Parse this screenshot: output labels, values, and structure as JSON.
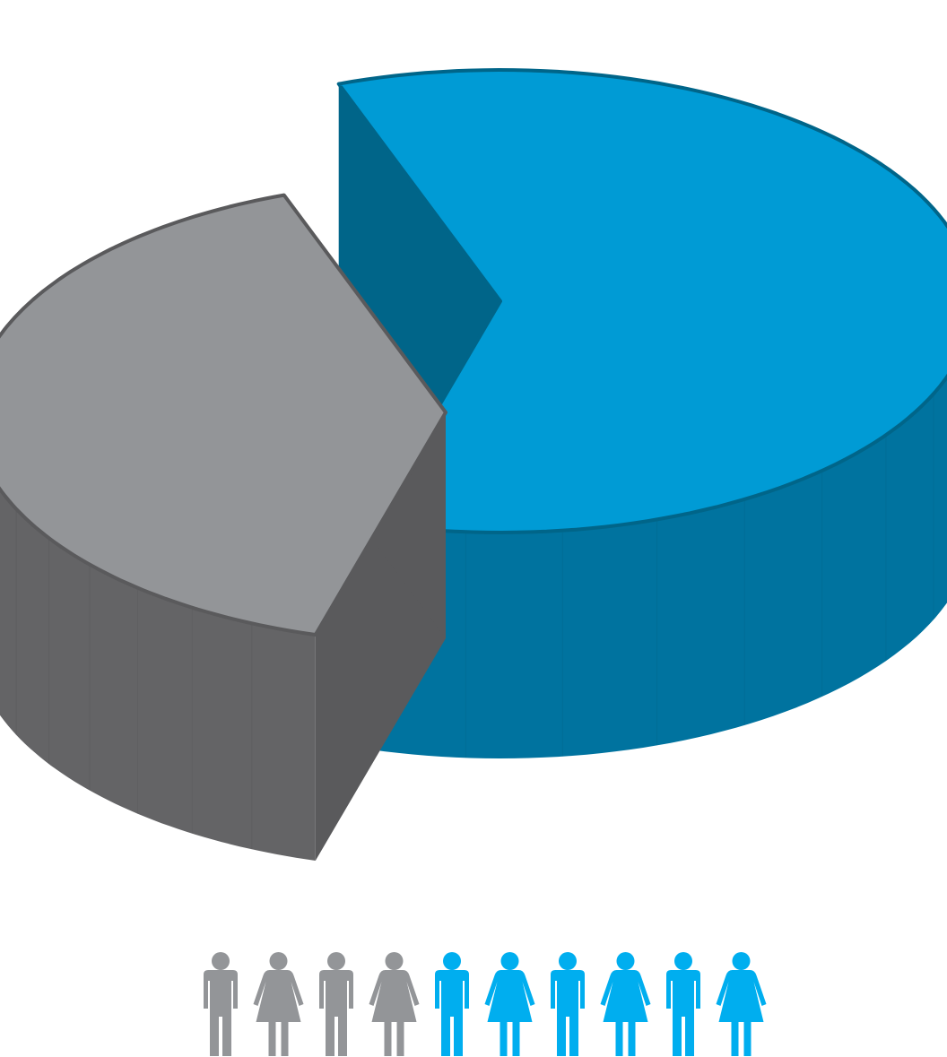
{
  "chart_data": {
    "type": "pie",
    "style": "3d-exploded",
    "slices": [
      {
        "value": 60,
        "color": "#009bd5",
        "side_color": "#00739f",
        "cut_color": "#006589"
      },
      {
        "value": 40,
        "color": "#939598",
        "side_color": "#646466",
        "cut_color": "#5a5a5c"
      }
    ]
  },
  "pictogram": {
    "total": 10,
    "icons": [
      {
        "gender": "male",
        "color": "#939598"
      },
      {
        "gender": "female",
        "color": "#939598"
      },
      {
        "gender": "male",
        "color": "#939598"
      },
      {
        "gender": "female",
        "color": "#939598"
      },
      {
        "gender": "male",
        "color": "#00aeef"
      },
      {
        "gender": "female",
        "color": "#00aeef"
      },
      {
        "gender": "male",
        "color": "#00aeef"
      },
      {
        "gender": "female",
        "color": "#00aeef"
      },
      {
        "gender": "male",
        "color": "#00aeef"
      },
      {
        "gender": "female",
        "color": "#00aeef"
      }
    ]
  }
}
